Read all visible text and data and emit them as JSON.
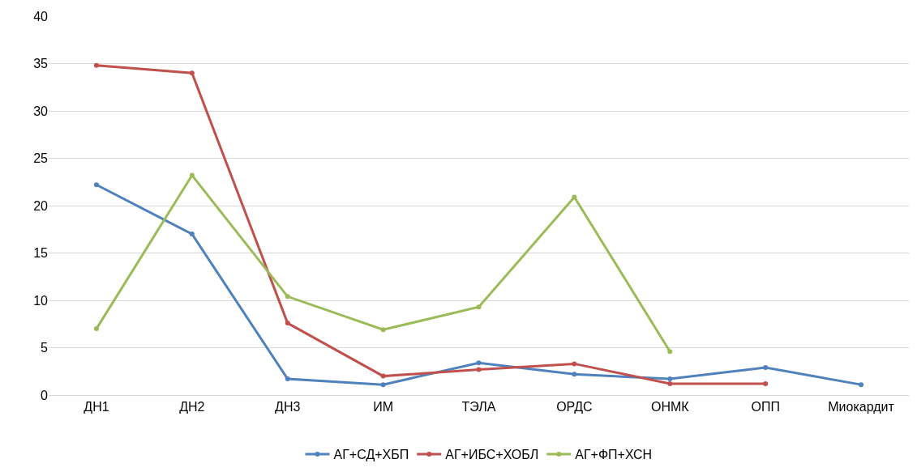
{
  "chart_data": {
    "type": "line",
    "categories": [
      "ДН1",
      "ДН2",
      "ДН3",
      "ИМ",
      "ТЭЛА",
      "ОРДС",
      "ОНМК",
      "ОПП",
      "Миокардит"
    ],
    "series": [
      {
        "name": "АГ+СД+ХБП",
        "color": "#4f81bd",
        "values": [
          22.2,
          17.0,
          1.7,
          1.1,
          3.4,
          2.2,
          1.7,
          2.9,
          1.1
        ]
      },
      {
        "name": "АГ+ИБС+ХОБЛ",
        "color": "#c0504d",
        "values": [
          34.8,
          34.0,
          7.6,
          2.0,
          2.7,
          3.3,
          1.2,
          1.2,
          null
        ]
      },
      {
        "name": "АГ+ФП+ХСН",
        "color": "#9bbb59",
        "values": [
          7.0,
          23.2,
          10.4,
          6.9,
          9.3,
          20.9,
          4.6,
          null,
          null
        ]
      }
    ],
    "ylim": [
      0,
      40
    ],
    "yticks": [
      0,
      5,
      10,
      15,
      20,
      25,
      30,
      35,
      40
    ],
    "grid": "y",
    "legend": "bottom",
    "marker": "circle",
    "line_style": "solid"
  }
}
